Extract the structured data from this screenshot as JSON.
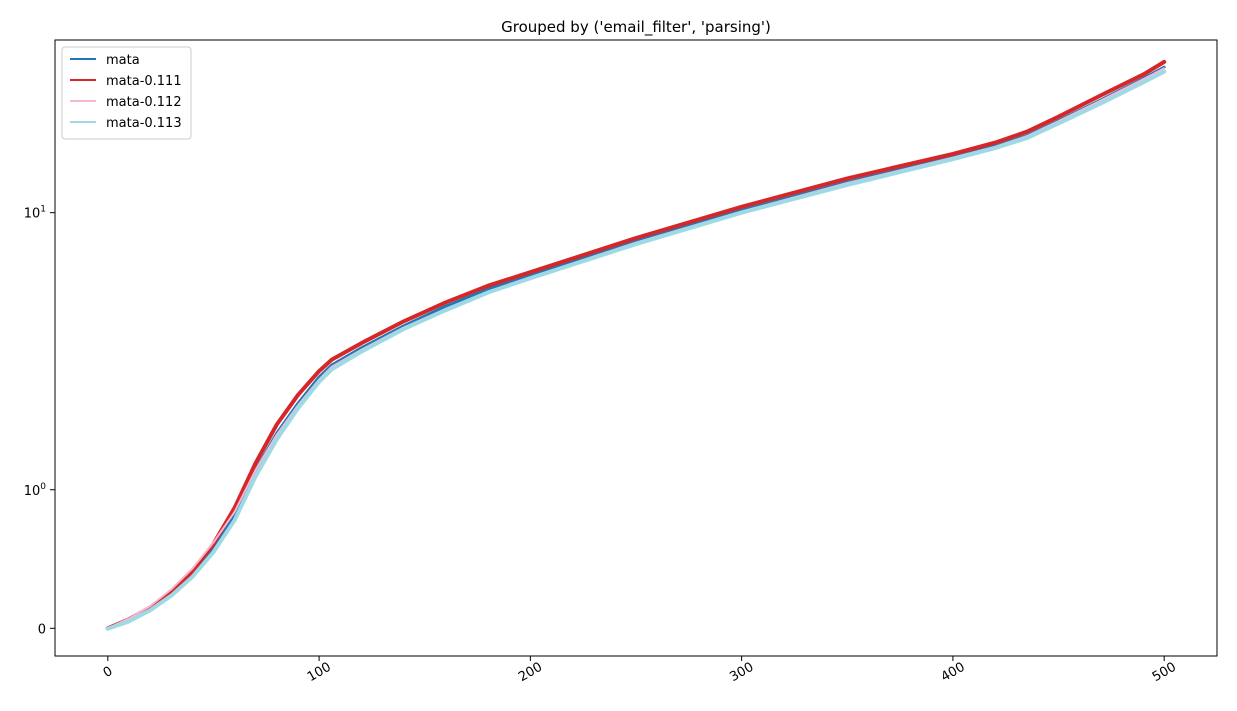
{
  "chart_data": {
    "type": "line",
    "title": "Grouped by ('email_filter', 'parsing')",
    "xlabel": "",
    "ylabel": "",
    "xlim": [
      -25,
      525
    ],
    "xticks": [
      0,
      100,
      200,
      300,
      400,
      500
    ],
    "xtick_labels": [
      "0",
      "100",
      "200",
      "300",
      "400",
      "500"
    ],
    "yscale": "symlog",
    "ylim": [
      -0.2,
      42
    ],
    "yticks": [
      {
        "value": 0,
        "base": "0",
        "exp": ""
      },
      {
        "value": 1,
        "base": "10",
        "exp": "0"
      },
      {
        "value": 10,
        "base": "10",
        "exp": "1"
      }
    ],
    "grid": false,
    "legend_position": "top-left",
    "x": [
      0,
      10,
      20,
      30,
      40,
      50,
      60,
      70,
      80,
      90,
      100,
      106,
      120,
      140,
      160,
      180,
      200,
      250,
      300,
      350,
      400,
      420,
      435,
      450,
      470,
      490,
      500
    ],
    "series": [
      {
        "name": "mata",
        "color": "#1f77b4",
        "width": 3,
        "values": [
          0,
          0.06,
          0.14,
          0.25,
          0.39,
          0.58,
          0.82,
          1.18,
          1.6,
          2.05,
          2.55,
          2.82,
          3.25,
          3.9,
          4.6,
          5.3,
          5.95,
          7.9,
          10.2,
          12.9,
          15.9,
          17.4,
          19.0,
          21.5,
          25.5,
          30.5,
          33.5
        ]
      },
      {
        "name": "mata-0.111",
        "color": "#d62728",
        "width": 4,
        "values": [
          0,
          0.065,
          0.15,
          0.265,
          0.41,
          0.61,
          0.87,
          1.25,
          1.72,
          2.2,
          2.68,
          2.95,
          3.38,
          4.05,
          4.75,
          5.45,
          6.1,
          8.1,
          10.5,
          13.3,
          16.3,
          17.9,
          19.6,
          22.2,
          26.5,
          31.5,
          35.0
        ]
      },
      {
        "name": "mata-0.112",
        "color": "#f7b6d2",
        "width": 2,
        "values": [
          0,
          0.07,
          0.16,
          0.28,
          0.43,
          0.62,
          0.84,
          1.18,
          1.58,
          2.02,
          2.5,
          2.78,
          3.2,
          3.85,
          4.5,
          5.2,
          5.85,
          7.8,
          10.1,
          12.8,
          15.8,
          17.3,
          18.9,
          21.4,
          25.4,
          30.3,
          33.2
        ]
      },
      {
        "name": "mata-0.113",
        "color": "#9edae5",
        "width": 4,
        "values": [
          -0.004,
          0.05,
          0.13,
          0.235,
          0.37,
          0.55,
          0.78,
          1.12,
          1.52,
          1.97,
          2.45,
          2.72,
          3.15,
          3.8,
          4.45,
          5.15,
          5.8,
          7.7,
          10.0,
          12.6,
          15.6,
          17.1,
          18.6,
          21.0,
          24.8,
          29.5,
          32.3
        ]
      }
    ]
  }
}
